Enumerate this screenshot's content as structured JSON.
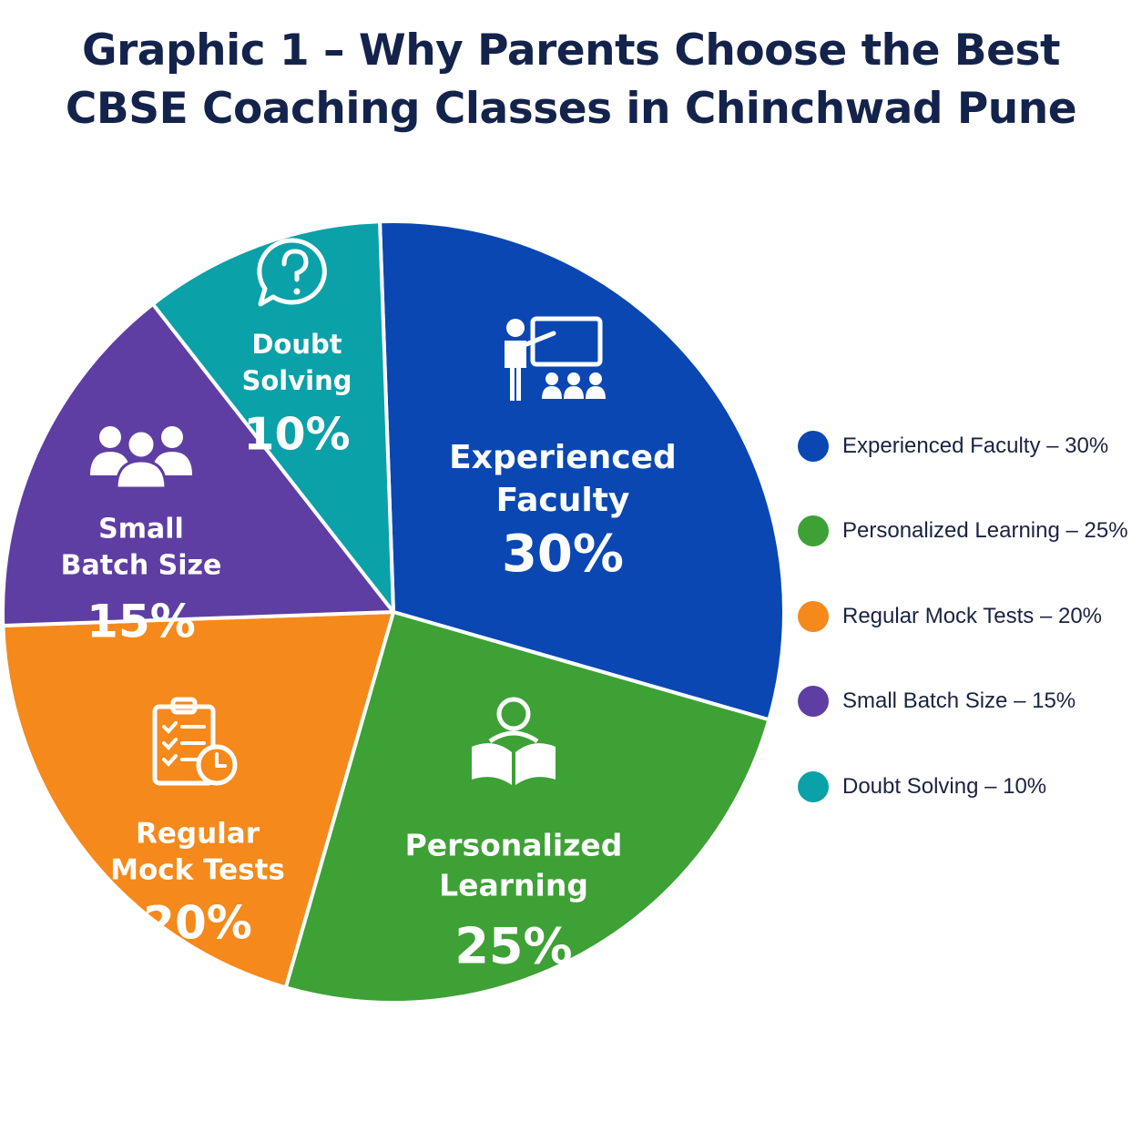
{
  "title": {
    "line1": "Graphic 1 – Why Parents Choose the Best",
    "line2": "CBSE Coaching Classes in Chinchwad Pune"
  },
  "chart_data": {
    "type": "pie",
    "title": "Graphic 1 – Why Parents Choose the Best CBSE Coaching Classes in Chinchwad Pune",
    "legend_position": "right",
    "slices": [
      {
        "name": "Experienced Faculty",
        "label_lines": [
          "Experienced",
          "Faculty"
        ],
        "value": 30,
        "value_label": "30%",
        "legend_text": "Experienced Faculty – 30%",
        "color": "#0a47b3",
        "icon": "teacher-icon"
      },
      {
        "name": "Personalized Learning",
        "label_lines": [
          "Personalized",
          "Learning"
        ],
        "value": 25,
        "value_label": "25%",
        "legend_text": "Personalized Learning – 25%",
        "color": "#3da135",
        "icon": "reader-icon"
      },
      {
        "name": "Regular Mock Tests",
        "label_lines": [
          "Regular",
          "Mock Tests"
        ],
        "value": 20,
        "value_label": "20%",
        "legend_text": "Regular Mock Tests – 20%",
        "color": "#f5891b",
        "icon": "checklist-clock-icon"
      },
      {
        "name": "Small Batch Size",
        "label_lines": [
          "Small",
          "Batch Size"
        ],
        "value": 15,
        "value_label": "15%",
        "legend_text": "Small Batch Size – 15%",
        "color": "#5e3ea3",
        "icon": "group-icon"
      },
      {
        "name": "Doubt Solving",
        "label_lines": [
          "Doubt",
          "Solving"
        ],
        "value": 10,
        "value_label": "10%",
        "legend_text": "Doubt Solving – 10%",
        "color": "#0aa1a8",
        "icon": "question-bubble-icon"
      }
    ]
  }
}
